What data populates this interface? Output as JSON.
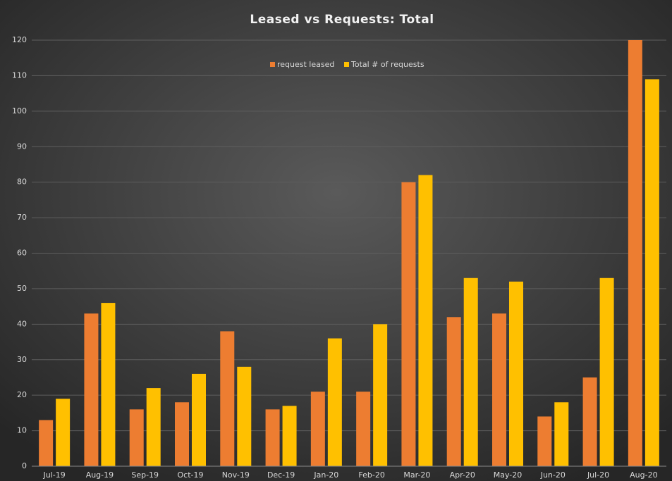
{
  "chart_data": {
    "type": "bar",
    "title": "Leased vs Requests: Total",
    "categories": [
      "Jul-19",
      "Aug-19",
      "Sep-19",
      "Oct-19",
      "Nov-19",
      "Dec-19",
      "Jan-20",
      "Feb-20",
      "Mar-20",
      "Apr-20",
      "May-20",
      "Jun-20",
      "Jul-20",
      "Aug-20"
    ],
    "series": [
      {
        "name": "request leased",
        "color": "#ed7d31",
        "values": [
          13,
          43,
          16,
          18,
          38,
          16,
          21,
          21,
          80,
          42,
          43,
          14,
          25,
          120
        ]
      },
      {
        "name": "Total # of requests",
        "color": "#ffc000",
        "values": [
          19,
          46,
          22,
          26,
          28,
          17,
          36,
          40,
          82,
          53,
          52,
          18,
          53,
          109
        ]
      }
    ],
    "ylim": [
      0,
      120
    ],
    "yticks": [
      0,
      10,
      20,
      30,
      40,
      50,
      60,
      70,
      80,
      90,
      100,
      110,
      120
    ],
    "grid": true,
    "legend": "top"
  }
}
